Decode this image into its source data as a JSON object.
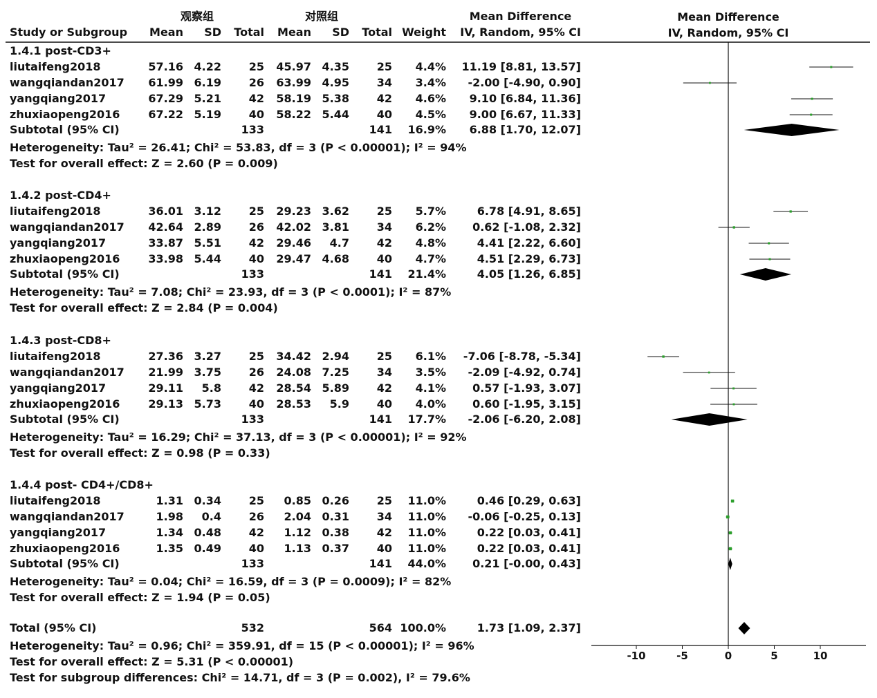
{
  "header": {
    "exp_group": "观察组",
    "ctrl_group": "对照组",
    "md_col": "Mean Difference",
    "col_study": "Study or Subgroup",
    "col_mean1": "Mean",
    "col_sd1": "SD",
    "col_total1": "Total",
    "col_mean2": "Mean",
    "col_sd2": "SD",
    "col_total2": "Total",
    "col_weight": "Weight",
    "col_md": "IV, Random, 95% CI",
    "plot_title": "Mean Difference",
    "plot_subtitle": "IV, Random, 95% CI"
  },
  "subgroups": [
    {
      "title": "1.4.1 post-CD3+",
      "studies": [
        {
          "name": "liutaifeng2018",
          "m1": "57.16",
          "sd1": "4.22",
          "n1": "25",
          "m2": "45.97",
          "sd2": "4.35",
          "n2": "25",
          "w": "4.4%",
          "ci": "11.19 [8.81, 13.57]"
        },
        {
          "name": "wangqiandan2017",
          "m1": "61.99",
          "sd1": "6.19",
          "n1": "26",
          "m2": "63.99",
          "sd2": "4.95",
          "n2": "34",
          "w": "3.4%",
          "ci": "-2.00 [-4.90, 0.90]"
        },
        {
          "name": "yangqiang2017",
          "m1": "67.29",
          "sd1": "5.21",
          "n1": "42",
          "m2": "58.19",
          "sd2": "5.38",
          "n2": "42",
          "w": "4.6%",
          "ci": "9.10 [6.84, 11.36]"
        },
        {
          "name": "zhuxiaopeng2016",
          "m1": "67.22",
          "sd1": "5.19",
          "n1": "40",
          "m2": "58.22",
          "sd2": "5.44",
          "n2": "40",
          "w": "4.5%",
          "ci": "9.00 [6.67, 11.33]"
        }
      ],
      "subtotal": {
        "label": "Subtotal (95% CI)",
        "n1": "133",
        "n2": "141",
        "w": "16.9%",
        "ci": "6.88 [1.70, 12.07]"
      },
      "het": "Heterogeneity: Tau² = 26.41; Chi² = 53.83, df = 3 (P < 0.00001); I² = 94%",
      "test": "Test for overall effect: Z = 2.60 (P = 0.009)"
    },
    {
      "title": "1.4.2 post-CD4+",
      "studies": [
        {
          "name": "liutaifeng2018",
          "m1": "36.01",
          "sd1": "3.12",
          "n1": "25",
          "m2": "29.23",
          "sd2": "3.62",
          "n2": "25",
          "w": "5.7%",
          "ci": "6.78 [4.91, 8.65]"
        },
        {
          "name": "wangqiandan2017",
          "m1": "42.64",
          "sd1": "2.89",
          "n1": "26",
          "m2": "42.02",
          "sd2": "3.81",
          "n2": "34",
          "w": "6.2%",
          "ci": "0.62 [-1.08, 2.32]"
        },
        {
          "name": "yangqiang2017",
          "m1": "33.87",
          "sd1": "5.51",
          "n1": "42",
          "m2": "29.46",
          "sd2": "4.7",
          "n2": "42",
          "w": "4.8%",
          "ci": "4.41 [2.22, 6.60]"
        },
        {
          "name": "zhuxiaopeng2016",
          "m1": "33.98",
          "sd1": "5.44",
          "n1": "40",
          "m2": "29.47",
          "sd2": "4.68",
          "n2": "40",
          "w": "4.7%",
          "ci": "4.51 [2.29, 6.73]"
        }
      ],
      "subtotal": {
        "label": "Subtotal (95% CI)",
        "n1": "133",
        "n2": "141",
        "w": "21.4%",
        "ci": "4.05 [1.26, 6.85]"
      },
      "het": "Heterogeneity: Tau² = 7.08; Chi² = 23.93, df = 3 (P < 0.0001); I² = 87%",
      "test": "Test for overall effect: Z = 2.84 (P = 0.004)"
    },
    {
      "title": "1.4.3 post-CD8+",
      "studies": [
        {
          "name": "liutaifeng2018",
          "m1": "27.36",
          "sd1": "3.27",
          "n1": "25",
          "m2": "34.42",
          "sd2": "2.94",
          "n2": "25",
          "w": "6.1%",
          "ci": "-7.06 [-8.78, -5.34]"
        },
        {
          "name": "wangqiandan2017",
          "m1": "21.99",
          "sd1": "3.75",
          "n1": "26",
          "m2": "24.08",
          "sd2": "7.25",
          "n2": "34",
          "w": "3.5%",
          "ci": "-2.09 [-4.92, 0.74]"
        },
        {
          "name": "yangqiang2017",
          "m1": "29.11",
          "sd1": "5.8",
          "n1": "42",
          "m2": "28.54",
          "sd2": "5.89",
          "n2": "42",
          "w": "4.1%",
          "ci": "0.57 [-1.93, 3.07]"
        },
        {
          "name": "zhuxiaopeng2016",
          "m1": "29.13",
          "sd1": "5.73",
          "n1": "40",
          "m2": "28.53",
          "sd2": "5.9",
          "n2": "40",
          "w": "4.0%",
          "ci": "0.60 [-1.95, 3.15]"
        }
      ],
      "subtotal": {
        "label": "Subtotal (95% CI)",
        "n1": "133",
        "n2": "141",
        "w": "17.7%",
        "ci": "-2.06 [-6.20, 2.08]"
      },
      "het": "Heterogeneity: Tau² = 16.29; Chi² = 37.13, df = 3 (P < 0.00001); I² = 92%",
      "test": "Test for overall effect: Z = 0.98 (P = 0.33)"
    },
    {
      "title": "1.4.4 post- CD4+/CD8+",
      "studies": [
        {
          "name": "liutaifeng2018",
          "m1": "1.31",
          "sd1": "0.34",
          "n1": "25",
          "m2": "0.85",
          "sd2": "0.26",
          "n2": "25",
          "w": "11.0%",
          "ci": "0.46 [0.29, 0.63]"
        },
        {
          "name": "wangqiandan2017",
          "m1": "1.98",
          "sd1": "0.4",
          "n1": "26",
          "m2": "2.04",
          "sd2": "0.31",
          "n2": "34",
          "w": "11.0%",
          "ci": "-0.06 [-0.25, 0.13]"
        },
        {
          "name": "yangqiang2017",
          "m1": "1.34",
          "sd1": "0.48",
          "n1": "42",
          "m2": "1.12",
          "sd2": "0.38",
          "n2": "42",
          "w": "11.0%",
          "ci": "0.22 [0.03, 0.41]"
        },
        {
          "name": "zhuxiaopeng2016",
          "m1": "1.35",
          "sd1": "0.49",
          "n1": "40",
          "m2": "1.13",
          "sd2": "0.37",
          "n2": "40",
          "w": "11.0%",
          "ci": "0.22 [0.03, 0.41]"
        }
      ],
      "subtotal": {
        "label": "Subtotal (95% CI)",
        "n1": "133",
        "n2": "141",
        "w": "44.0%",
        "ci": "0.21 [-0.00, 0.43]"
      },
      "het": "Heterogeneity: Tau² = 0.04; Chi² = 16.59, df = 3 (P = 0.0009); I² = 82%",
      "test": "Test for overall effect: Z = 1.94 (P = 0.05)"
    }
  ],
  "total": {
    "label": "Total (95% CI)",
    "n1": "532",
    "n2": "564",
    "w": "100.0%",
    "ci": "1.73 [1.09, 2.37]",
    "het": "Heterogeneity: Tau² = 0.96; Chi² = 359.91, df = 15 (P < 0.00001); I² = 96%",
    "test": "Test for overall effect: Z = 5.31 (P < 0.00001)",
    "subgroup_diff": "Test for subgroup differences: Chi² = 14.71, df = 3 (P = 0.002), I² = 79.6%"
  },
  "chart_data": {
    "type": "forest",
    "title": "Mean Difference",
    "subtitle": "IV, Random, 95% CI",
    "xlim": [
      -15,
      15
    ],
    "xticks": [
      -10,
      -5,
      0,
      5,
      10
    ],
    "marker_color": "#2ca02c",
    "groups": [
      {
        "studies": [
          {
            "md": 11.19,
            "lo": 8.81,
            "hi": 13.57,
            "w": 4.4
          },
          {
            "md": -2.0,
            "lo": -4.9,
            "hi": 0.9,
            "w": 3.4
          },
          {
            "md": 9.1,
            "lo": 6.84,
            "hi": 11.36,
            "w": 4.6
          },
          {
            "md": 9.0,
            "lo": 6.67,
            "hi": 11.33,
            "w": 4.5
          }
        ],
        "subtotal": {
          "md": 6.88,
          "lo": 1.7,
          "hi": 12.07
        }
      },
      {
        "studies": [
          {
            "md": 6.78,
            "lo": 4.91,
            "hi": 8.65,
            "w": 5.7
          },
          {
            "md": 0.62,
            "lo": -1.08,
            "hi": 2.32,
            "w": 6.2
          },
          {
            "md": 4.41,
            "lo": 2.22,
            "hi": 6.6,
            "w": 4.8
          },
          {
            "md": 4.51,
            "lo": 2.29,
            "hi": 6.73,
            "w": 4.7
          }
        ],
        "subtotal": {
          "md": 4.05,
          "lo": 1.26,
          "hi": 6.85
        }
      },
      {
        "studies": [
          {
            "md": -7.06,
            "lo": -8.78,
            "hi": -5.34,
            "w": 6.1
          },
          {
            "md": -2.09,
            "lo": -4.92,
            "hi": 0.74,
            "w": 3.5
          },
          {
            "md": 0.57,
            "lo": -1.93,
            "hi": 3.07,
            "w": 4.1
          },
          {
            "md": 0.6,
            "lo": -1.95,
            "hi": 3.15,
            "w": 4.0
          }
        ],
        "subtotal": {
          "md": -2.06,
          "lo": -6.2,
          "hi": 2.08
        }
      },
      {
        "studies": [
          {
            "md": 0.46,
            "lo": 0.29,
            "hi": 0.63,
            "w": 11.0
          },
          {
            "md": -0.06,
            "lo": -0.25,
            "hi": 0.13,
            "w": 11.0
          },
          {
            "md": 0.22,
            "lo": 0.03,
            "hi": 0.41,
            "w": 11.0
          },
          {
            "md": 0.22,
            "lo": 0.03,
            "hi": 0.41,
            "w": 11.0
          }
        ],
        "subtotal": {
          "md": 0.21,
          "lo": -0.0,
          "hi": 0.43
        }
      }
    ],
    "total": {
      "md": 1.73,
      "lo": 1.09,
      "hi": 2.37
    }
  }
}
